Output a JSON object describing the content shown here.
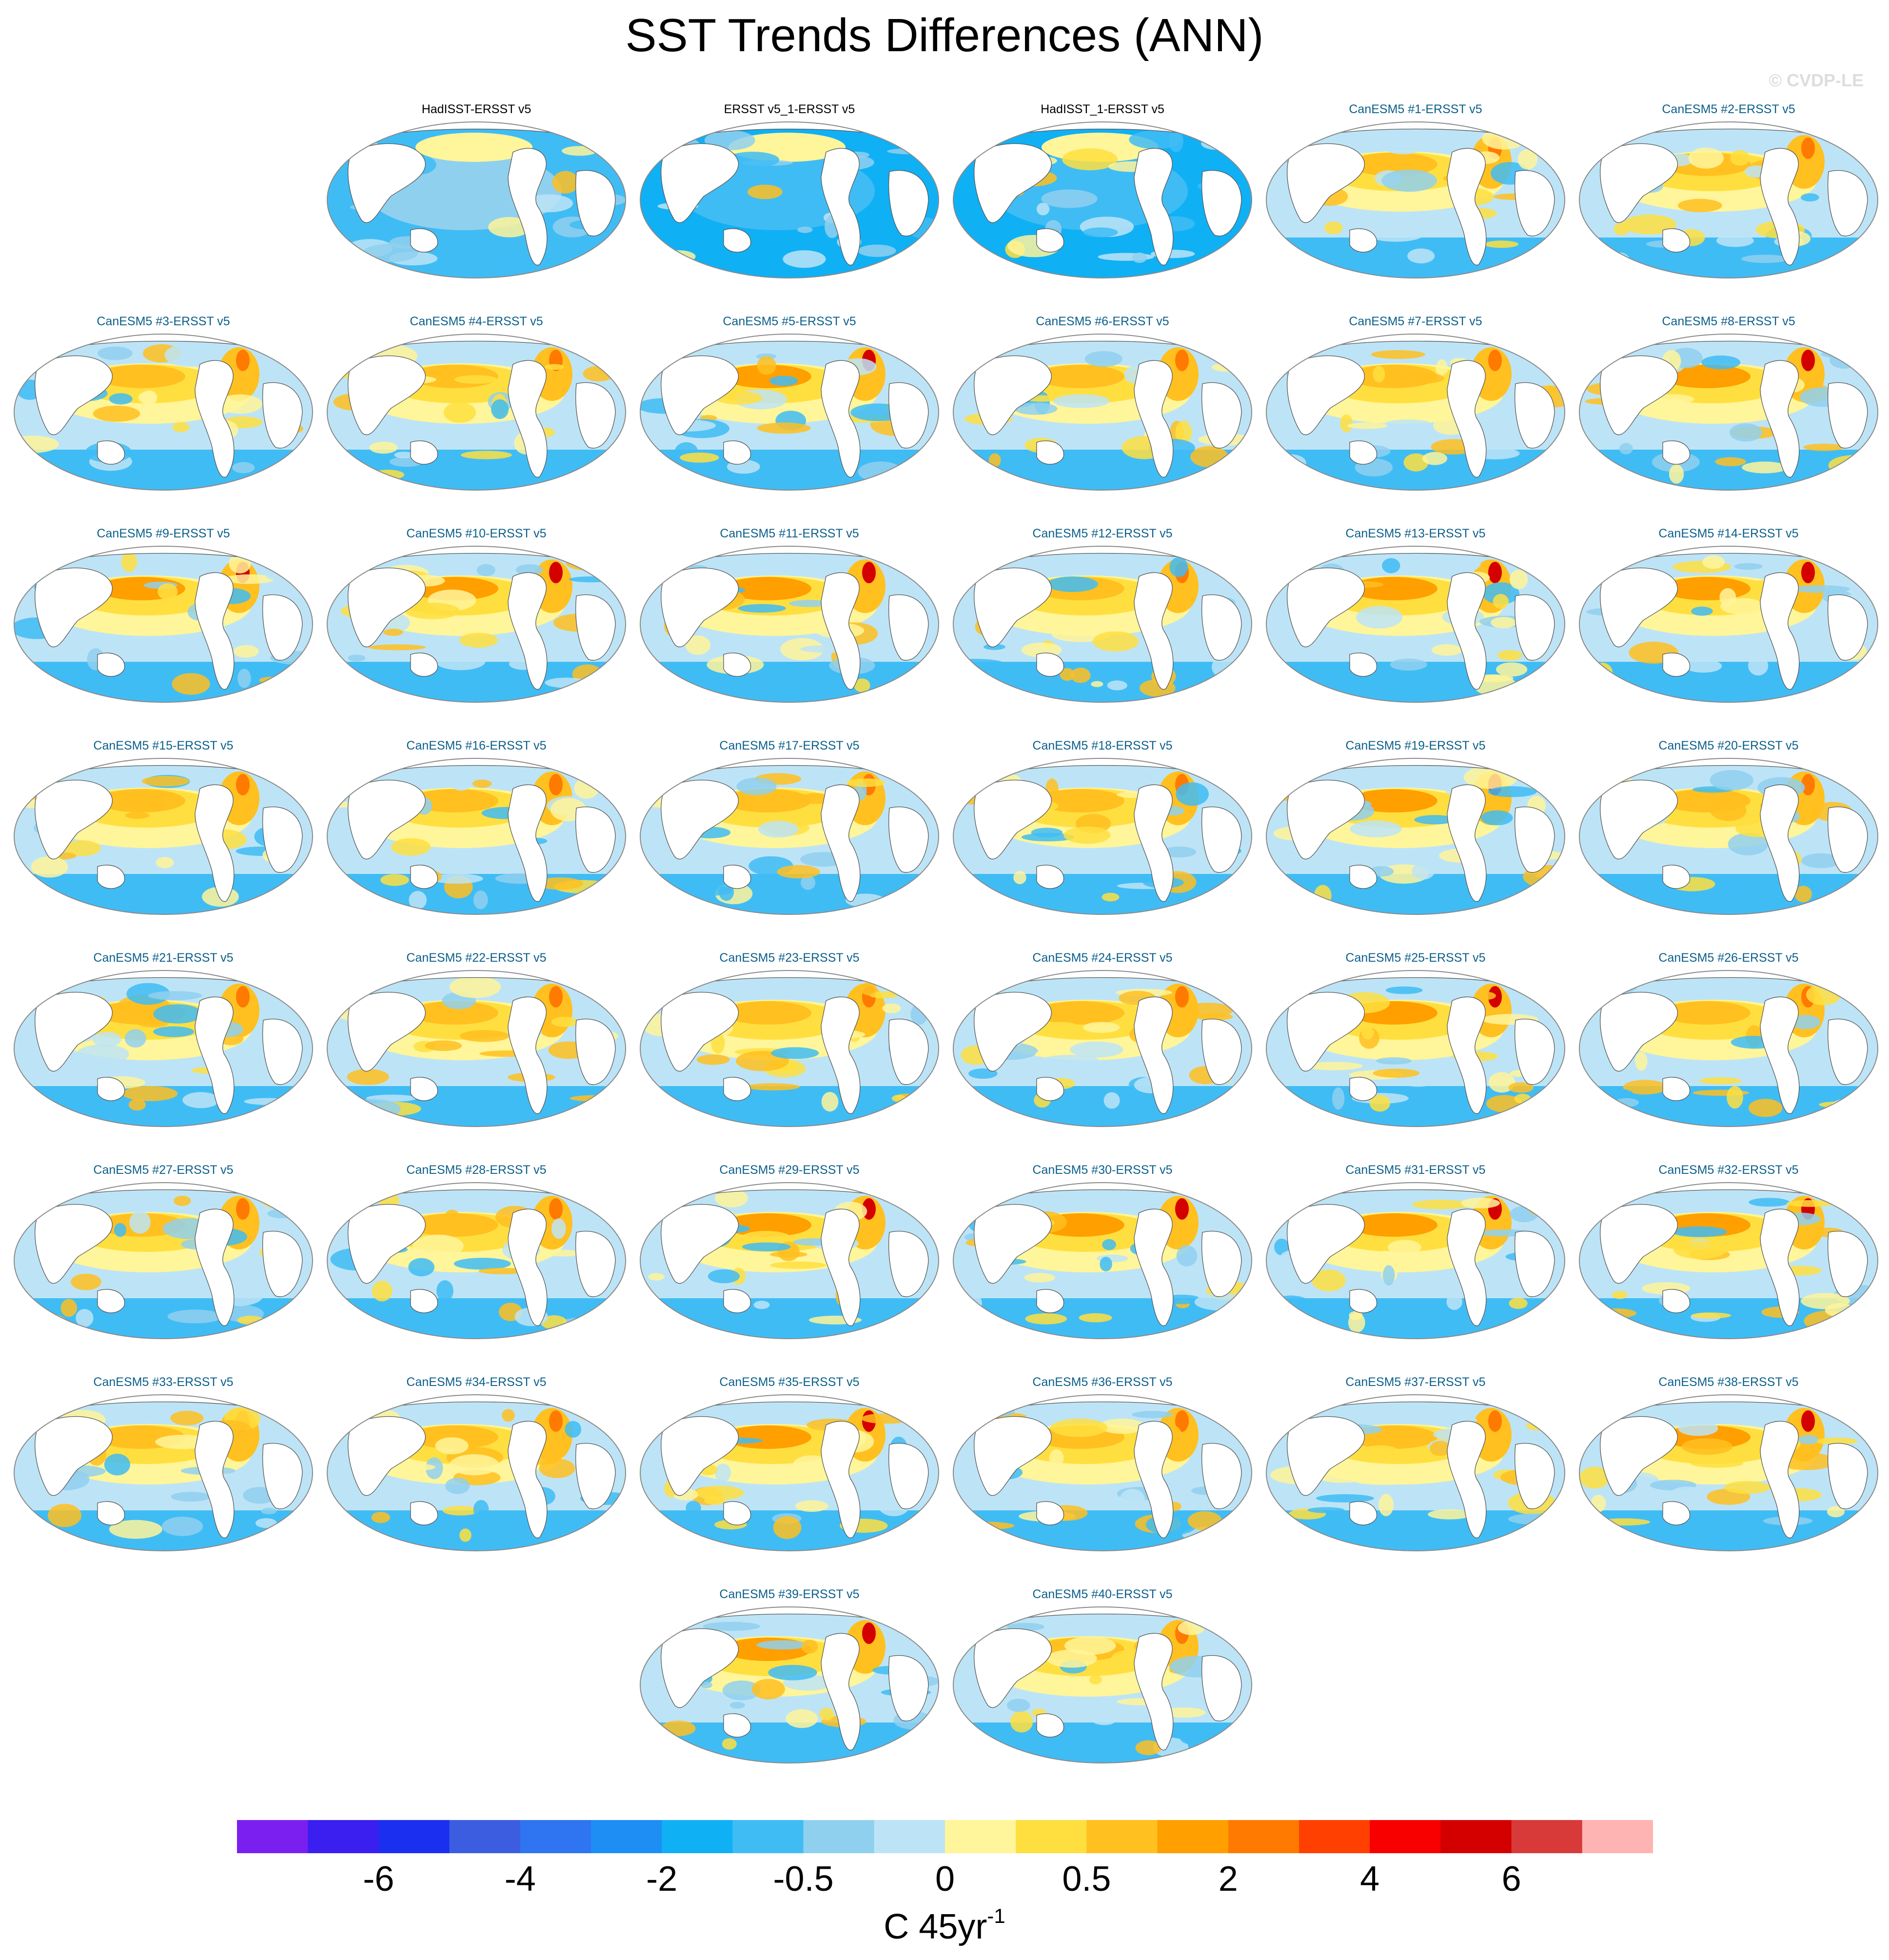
{
  "title": "SST Trends Differences (ANN)",
  "watermark": "© CVDP-LE",
  "panels": [
    {
      "label": "HadISST-ERSST v5",
      "kind": "obs",
      "level": -2
    },
    {
      "label": "ERSST v5_1-ERSST v5",
      "kind": "obs",
      "level": -3
    },
    {
      "label": "HadISST_1-ERSST v5",
      "kind": "obs",
      "level": -3
    },
    {
      "label": "CanESM5 #1-ERSST v5",
      "kind": "model",
      "level": 1
    },
    {
      "label": "CanESM5 #2-ERSST v5",
      "kind": "model",
      "level": 1
    },
    {
      "label": "CanESM5 #3-ERSST v5",
      "kind": "model",
      "level": 1
    },
    {
      "label": "CanESM5 #4-ERSST v5",
      "kind": "model",
      "level": 1
    },
    {
      "label": "CanESM5 #5-ERSST v5",
      "kind": "model",
      "level": 2
    },
    {
      "label": "CanESM5 #6-ERSST v5",
      "kind": "model",
      "level": 1
    },
    {
      "label": "CanESM5 #7-ERSST v5",
      "kind": "model",
      "level": 1
    },
    {
      "label": "CanESM5 #8-ERSST v5",
      "kind": "model",
      "level": 2
    },
    {
      "label": "CanESM5 #9-ERSST v5",
      "kind": "model",
      "level": 2
    },
    {
      "label": "CanESM5 #10-ERSST v5",
      "kind": "model",
      "level": 2
    },
    {
      "label": "CanESM5 #11-ERSST v5",
      "kind": "model",
      "level": 2
    },
    {
      "label": "CanESM5 #12-ERSST v5",
      "kind": "model",
      "level": 1
    },
    {
      "label": "CanESM5 #13-ERSST v5",
      "kind": "model",
      "level": 2
    },
    {
      "label": "CanESM5 #14-ERSST v5",
      "kind": "model",
      "level": 2
    },
    {
      "label": "CanESM5 #15-ERSST v5",
      "kind": "model",
      "level": 1
    },
    {
      "label": "CanESM5 #16-ERSST v5",
      "kind": "model",
      "level": 1
    },
    {
      "label": "CanESM5 #17-ERSST v5",
      "kind": "model",
      "level": 1
    },
    {
      "label": "CanESM5 #18-ERSST v5",
      "kind": "model",
      "level": 1
    },
    {
      "label": "CanESM5 #19-ERSST v5",
      "kind": "model",
      "level": 2
    },
    {
      "label": "CanESM5 #20-ERSST v5",
      "kind": "model",
      "level": 1
    },
    {
      "label": "CanESM5 #21-ERSST v5",
      "kind": "model",
      "level": 1
    },
    {
      "label": "CanESM5 #22-ERSST v5",
      "kind": "model",
      "level": 1
    },
    {
      "label": "CanESM5 #23-ERSST v5",
      "kind": "model",
      "level": 1
    },
    {
      "label": "CanESM5 #24-ERSST v5",
      "kind": "model",
      "level": 1
    },
    {
      "label": "CanESM5 #25-ERSST v5",
      "kind": "model",
      "level": 2
    },
    {
      "label": "CanESM5 #26-ERSST v5",
      "kind": "model",
      "level": 1
    },
    {
      "label": "CanESM5 #27-ERSST v5",
      "kind": "model",
      "level": 1
    },
    {
      "label": "CanESM5 #28-ERSST v5",
      "kind": "model",
      "level": 1
    },
    {
      "label": "CanESM5 #29-ERSST v5",
      "kind": "model",
      "level": 2
    },
    {
      "label": "CanESM5 #30-ERSST v5",
      "kind": "model",
      "level": 2
    },
    {
      "label": "CanESM5 #31-ERSST v5",
      "kind": "model",
      "level": 2
    },
    {
      "label": "CanESM5 #32-ERSST v5",
      "kind": "model",
      "level": 2
    },
    {
      "label": "CanESM5 #33-ERSST v5",
      "kind": "model",
      "level": 1
    },
    {
      "label": "CanESM5 #34-ERSST v5",
      "kind": "model",
      "level": 1
    },
    {
      "label": "CanESM5 #35-ERSST v5",
      "kind": "model",
      "level": 2
    },
    {
      "label": "CanESM5 #36-ERSST v5",
      "kind": "model",
      "level": 1
    },
    {
      "label": "CanESM5 #37-ERSST v5",
      "kind": "model",
      "level": 1
    },
    {
      "label": "CanESM5 #38-ERSST v5",
      "kind": "model",
      "level": 2
    },
    {
      "label": "CanESM5 #39-ERSST v5",
      "kind": "model",
      "level": 2
    },
    {
      "label": "CanESM5 #40-ERSST v5",
      "kind": "model",
      "level": 1
    }
  ],
  "colorbar": {
    "colors": [
      "#7b1ff0",
      "#3a1ff0",
      "#1a2ff0",
      "#3d5de0",
      "#2f74f0",
      "#1e8ef5",
      "#10b0f5",
      "#40bcf5",
      "#90d0ef",
      "#bde4f6",
      "#fff59a",
      "#ffdf40",
      "#ffc020",
      "#ff9f00",
      "#ff7a00",
      "#ff4000",
      "#f80000",
      "#d40000",
      "#d83a3a",
      "#ffb4b4"
    ],
    "tick_labels": [
      "-6",
      "-4",
      "-2",
      "-0.5",
      "0",
      "0.5",
      "2",
      "4",
      "6"
    ],
    "units_text": "C 45yr",
    "units_exponent": "-1"
  }
}
